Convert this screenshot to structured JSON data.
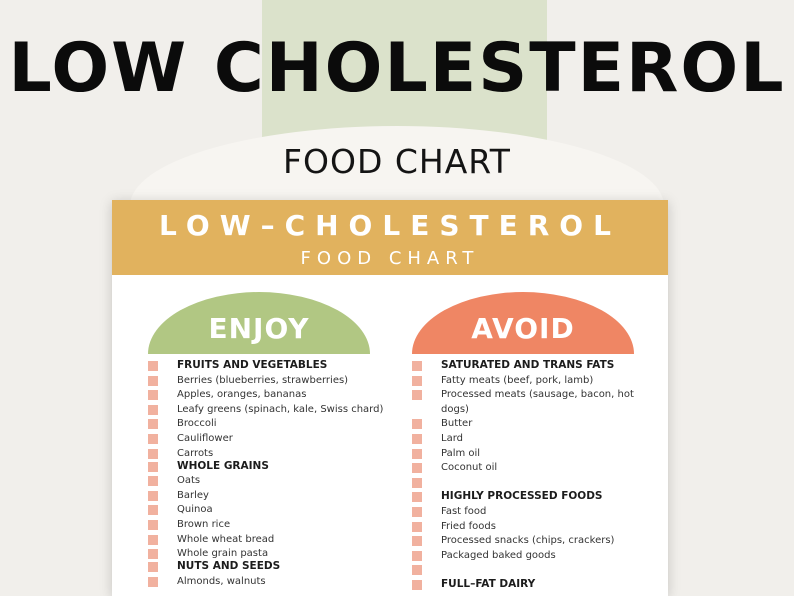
{
  "banner": {
    "title": "LOW CHOLESTEROL",
    "subtitle": "FOOD CHART"
  },
  "card": {
    "title": "LOW–CHOLESTEROL",
    "subtitle": "FOOD CHART"
  },
  "colors": {
    "header": "#e1b25e",
    "enjoy": "#b1c783",
    "avoid": "#ef8664",
    "checkbox": "#f1b19f",
    "stripe": "#dbe2cb"
  },
  "enjoy": {
    "label": "ENJOY",
    "cat1": "FRUITS AND VEGETABLES",
    "i1": "Berries (blueberries, strawberries)",
    "i2": "Apples, oranges, bananas",
    "i3": "Leafy greens (spinach, kale, Swiss chard)",
    "i4": "Broccoli",
    "i5": "Cauliflower",
    "i6": "Carrots",
    "cat2": "WHOLE GRAINS",
    "i7": "Oats",
    "i8": "Barley",
    "i9": "Quinoa",
    "i10": "Brown rice",
    "i11": "Whole wheat bread",
    "i12": "Whole grain pasta",
    "cat3": "NUTS AND SEEDS",
    "i13": "Almonds, walnuts"
  },
  "avoid": {
    "label": "AVOID",
    "cat1": "SATURATED AND TRANS FATS",
    "i1": "Fatty meats (beef, pork, lamb)",
    "i2": "Processed meats (sausage, bacon, hot",
    "i2b": "dogs)",
    "i3": "Butter",
    "i4": "Lard",
    "i5": "Palm oil",
    "i6": "Coconut oil",
    "cat2": "HIGHLY PROCESSED FOODS",
    "i7": "Fast food",
    "i8": "Fried foods",
    "i9": "Processed snacks (chips, crackers)",
    "i10": "Packaged baked goods",
    "cat3": "FULL–FAT DAIRY"
  }
}
